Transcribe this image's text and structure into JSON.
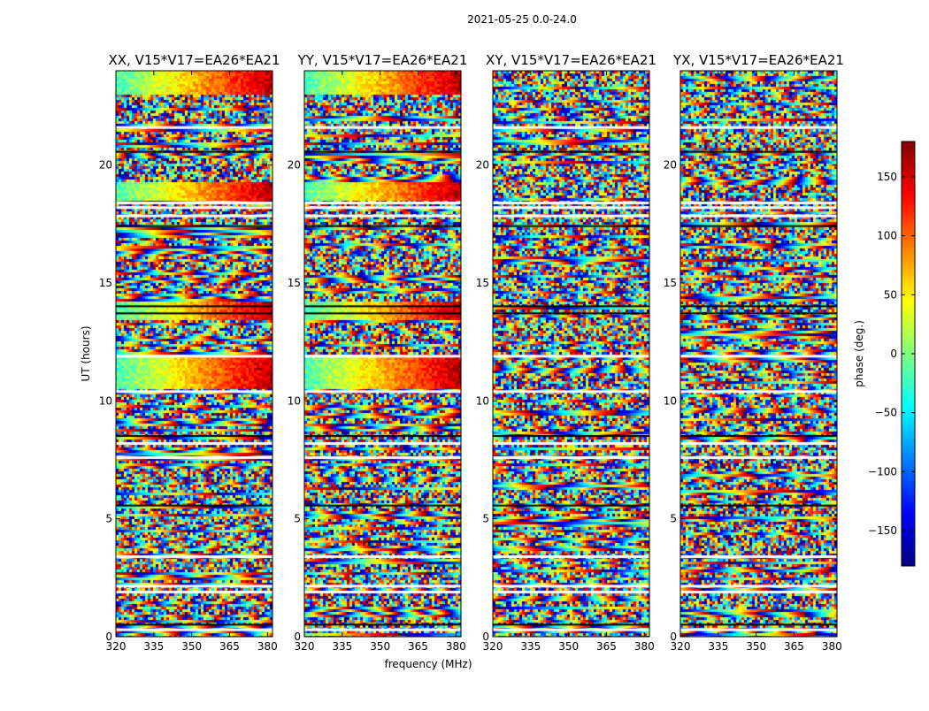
{
  "chart_data": {
    "type": "heatmap",
    "suptitle": "2021-05-25 0.0-24.0",
    "xlabel": "frequency (MHz)",
    "ylabel": "UT (hours)",
    "xlim": [
      320,
      382
    ],
    "ylim": [
      0,
      24
    ],
    "x_ticks": [
      320,
      335,
      350,
      365,
      380
    ],
    "y_ticks": [
      0,
      5,
      10,
      15,
      20
    ],
    "colorbar": {
      "label": "phase (deg.)",
      "range": [
        -180,
        180
      ],
      "ticks": [
        -150,
        -100,
        -50,
        0,
        50,
        100,
        150
      ],
      "colormap": "jet",
      "colors": [
        "#00007f",
        "#0000ff",
        "#007fff",
        "#00ffff",
        "#7fff7f",
        "#ffff00",
        "#ff7f00",
        "#ff0000",
        "#7f0000"
      ]
    },
    "panels": [
      {
        "title": "XX, V15*V17=EA26*EA21"
      },
      {
        "title": "YY, V15*V17=EA26*EA21"
      },
      {
        "title": "XY, V15*V17=EA26*EA21"
      },
      {
        "title": "YX, V15*V17=EA26*EA21"
      }
    ],
    "blank_time_bands_hours": [
      0.35,
      1.95,
      2.2,
      3.45,
      7.65,
      8.25,
      10.45,
      11.95,
      17.9,
      18.25,
      18.45,
      21.65
    ],
    "dark_time_bands_hours": [
      0.55,
      5.6,
      8.55,
      13.75,
      14.05,
      17.45,
      20.6
    ]
  }
}
